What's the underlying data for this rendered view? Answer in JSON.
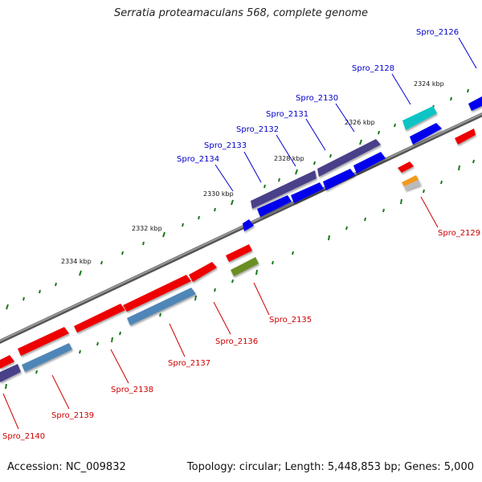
{
  "header": {
    "title": "Serratia proteamaculans 568, complete genome"
  },
  "footer": {
    "accession": "Accession: NC_009832",
    "topology": "Topology: circular; Length: 5,448,853 bp; Genes: 5,000"
  },
  "kbp_labels": [
    "2324 kbp",
    "2326 kbp",
    "2328 kbp",
    "2330 kbp",
    "2332 kbp",
    "2334 kbp"
  ],
  "genes": [
    {
      "id": "Spro_2126",
      "strand": "plus"
    },
    {
      "id": "Spro_2128",
      "strand": "plus"
    },
    {
      "id": "Spro_2130",
      "strand": "plus"
    },
    {
      "id": "Spro_2131",
      "strand": "plus"
    },
    {
      "id": "Spro_2132",
      "strand": "plus"
    },
    {
      "id": "Spro_2133",
      "strand": "plus"
    },
    {
      "id": "Spro_2134",
      "strand": "plus"
    },
    {
      "id": "Spro_2129",
      "strand": "minus"
    },
    {
      "id": "Spro_2135",
      "strand": "minus"
    },
    {
      "id": "Spro_2136",
      "strand": "minus"
    },
    {
      "id": "Spro_2137",
      "strand": "minus"
    },
    {
      "id": "Spro_2138",
      "strand": "minus"
    },
    {
      "id": "Spro_2139",
      "strand": "minus"
    },
    {
      "id": "Spro_2140",
      "strand": "minus"
    }
  ],
  "colors": {
    "plus_label": "#0000cc",
    "minus_label": "#cc0000",
    "backbone": "#777777",
    "tick": "#1a7a1a",
    "blue": "#0000ee",
    "navy": "#4a3f8a",
    "red": "#ee0000",
    "steel": "#4f86b8",
    "cyan": "#11c4c4",
    "olive": "#6b8e23",
    "orange": "#f39a1b",
    "grey": "#bbbbbb"
  }
}
